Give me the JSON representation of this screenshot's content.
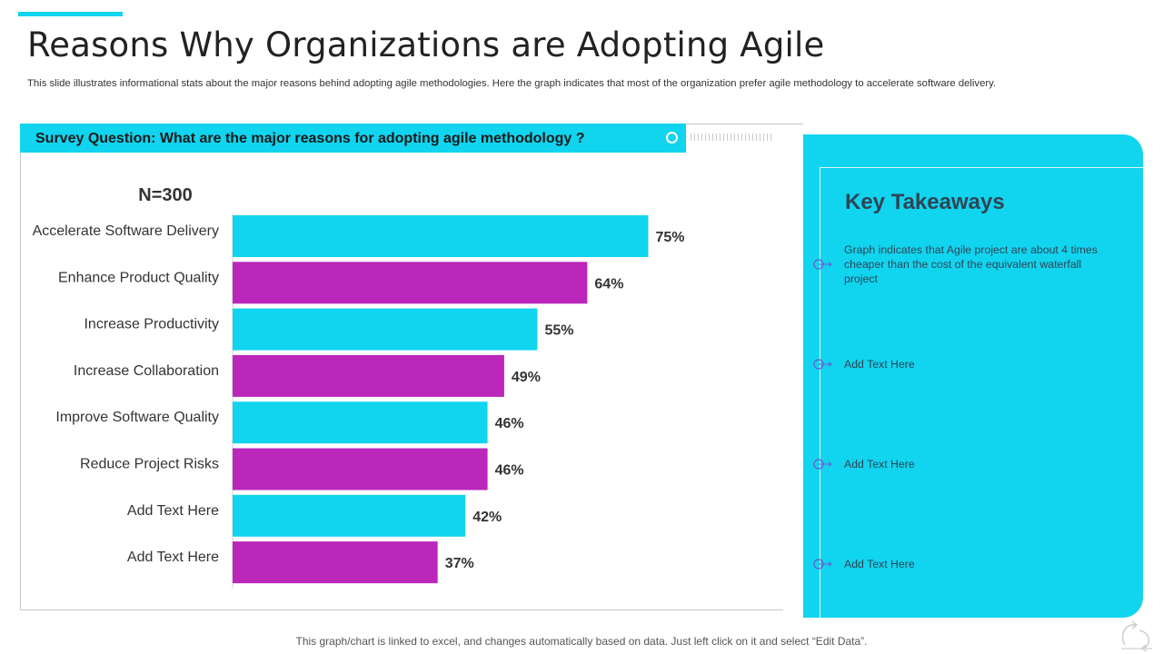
{
  "title": "Reasons Why Organizations are Adopting Agile",
  "subtitle": "This slide illustrates informational stats about the major reasons behind adopting agile methodologies. Here the graph indicates that most of the organization prefer agile methodology to accelerate software delivery.",
  "survey_question": "Survey Question: What are the major reasons for adopting agile methodology ?",
  "colors": {
    "cyan": "#11d4ef",
    "purple": "#bb27bb",
    "text_dark": "#2e4554"
  },
  "chart_data": {
    "type": "bar",
    "orientation": "horizontal",
    "sample_label": "N=300",
    "categories": [
      "Accelerate Software Delivery",
      "Enhance Product Quality",
      "Increase Productivity",
      "Increase Collaboration",
      "Improve Software Quality",
      "Reduce Project Risks",
      "Add Text Here",
      "Add Text Here"
    ],
    "values": [
      75,
      64,
      55,
      49,
      46,
      46,
      42,
      37
    ],
    "value_labels": [
      "75%",
      "64%",
      "55%",
      "49%",
      "46%",
      "46%",
      "42%",
      "37%"
    ],
    "bar_colors": [
      "#11d4ef",
      "#bb27bb",
      "#11d4ef",
      "#bb27bb",
      "#11d4ef",
      "#bb27bb",
      "#11d4ef",
      "#bb27bb"
    ],
    "xlim": [
      0,
      100
    ],
    "grid": false,
    "legend": "none"
  },
  "key_takeaways": {
    "title": "Key Takeaways",
    "items": [
      "Graph indicates that  Agile project are about 4 times cheaper than the cost of the equivalent waterfall project",
      "Add Text Here",
      "Add Text Here",
      "Add Text Here"
    ]
  },
  "footer": "This graph/chart is linked to excel, and changes automatically based on data. Just left click on it and select “Edit Data”."
}
